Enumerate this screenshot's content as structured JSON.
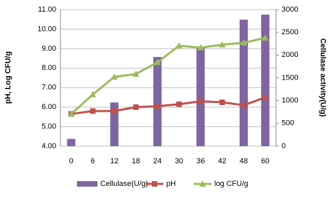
{
  "chart_data": {
    "type": "bar_line",
    "y_label": "pH, Log CFU/g",
    "y2_label": "Cellulase activity(U/g)",
    "categories": [
      "0",
      "6",
      "12",
      "18",
      "24",
      "30",
      "36",
      "42",
      "48",
      "60"
    ],
    "ylim": [
      4,
      11
    ],
    "yticks": [
      {
        "value": 4,
        "label": "4.00"
      },
      {
        "value": 5,
        "label": "5.00"
      },
      {
        "value": 6,
        "label": "6.00"
      },
      {
        "value": 7,
        "label": "7.00"
      },
      {
        "value": 8,
        "label": "8.00"
      },
      {
        "value": 9,
        "label": "9.00"
      },
      {
        "value": 10,
        "label": "10.00"
      },
      {
        "value": 11,
        "label": "11.00"
      }
    ],
    "y2lim": [
      0,
      3000
    ],
    "y2ticks": [
      0,
      500,
      1000,
      1500,
      2000,
      2500,
      3000
    ],
    "grid": true,
    "series": [
      {
        "name": "Cellulase(U/g)",
        "color": "#8064a2",
        "kind": "bar",
        "axis": "y2",
        "values": [
          160,
          null,
          960,
          null,
          1960,
          null,
          2150,
          null,
          2780,
          2890
        ]
      },
      {
        "name": "pH",
        "color": "#c0504d",
        "kind": "line",
        "marker": "square",
        "values": [
          5.65,
          5.8,
          5.8,
          6.0,
          6.05,
          6.15,
          6.3,
          6.25,
          6.1,
          6.5
        ]
      },
      {
        "name": "log CFU/g",
        "color": "#9bbb59",
        "kind": "line",
        "marker": "triangle",
        "values": [
          5.65,
          6.65,
          7.55,
          7.7,
          8.3,
          9.15,
          9.05,
          9.2,
          9.3,
          9.55
        ]
      }
    ]
  }
}
